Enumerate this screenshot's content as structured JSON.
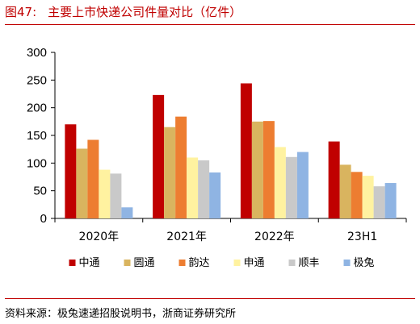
{
  "header": {
    "figure_no": "图47:",
    "title": "主要上市快递公司件量对比（亿件）"
  },
  "footer": {
    "source": "资料来源：极兔速递招股说明书，浙商证券研究所"
  },
  "colors": {
    "accent": "#c00000",
    "series": [
      "#c00000",
      "#d9b45f",
      "#ed7d31",
      "#fff2a0",
      "#c9c9c9",
      "#8fb4e3"
    ]
  },
  "chart_data": {
    "type": "bar",
    "categories": [
      "2020年",
      "2021年",
      "2022年",
      "23H1"
    ],
    "series": [
      {
        "name": "中通",
        "values": [
          170,
          223,
          244,
          139
        ]
      },
      {
        "name": "圆通",
        "values": [
          126,
          165,
          175,
          97
        ]
      },
      {
        "name": "韵达",
        "values": [
          142,
          184,
          176,
          84
        ]
      },
      {
        "name": "申通",
        "values": [
          88,
          110,
          129,
          77
        ]
      },
      {
        "name": "顺丰",
        "values": [
          81,
          105,
          111,
          58
        ]
      },
      {
        "name": "极兔",
        "values": [
          20,
          83,
          120,
          64
        ]
      }
    ],
    "yticks": [
      0,
      50,
      100,
      150,
      200,
      250,
      300
    ],
    "ylim": [
      0,
      300
    ],
    "grid": false,
    "legend_position": "bottom"
  }
}
